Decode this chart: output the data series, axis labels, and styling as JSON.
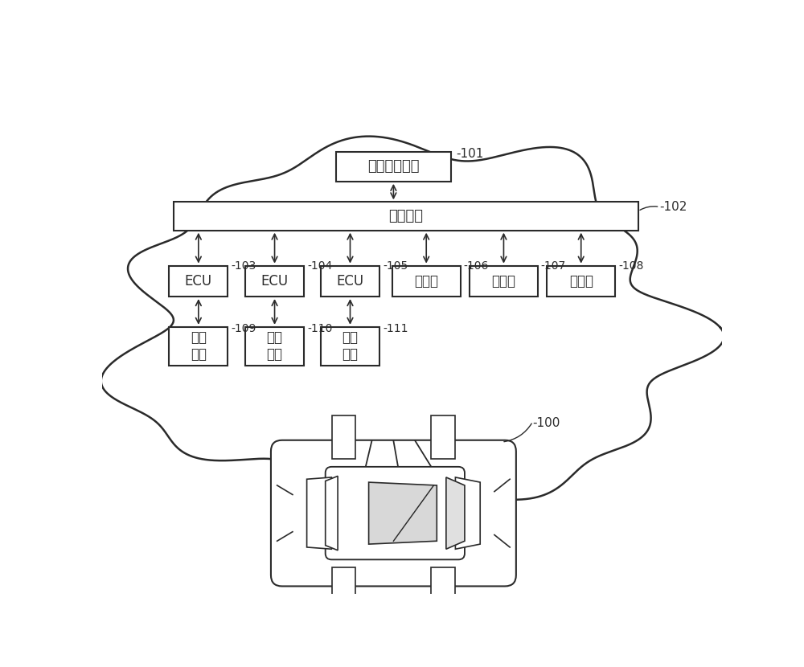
{
  "bg_color": "#ffffff",
  "line_color": "#2a2a2a",
  "label_101": "-101",
  "label_102": "-102",
  "label_103": "-103",
  "label_104": "-104",
  "label_105": "-105",
  "label_106": "-106",
  "label_107": "-107",
  "label_108": "-108",
  "label_109": "-109",
  "label_110": "-110",
  "label_111": "-111",
  "label_100": "-100",
  "text_drive": "驾驶控制设备",
  "text_bus": "车身总线",
  "text_ecu1": "ECU",
  "text_ecu2": "ECU",
  "text_ecu3": "ECU",
  "text_sensor1": "传感器",
  "text_sensor2": "传感器",
  "text_sensor3": "传感器",
  "text_exec1": "执行\n器件",
  "text_exec2": "执行\n器件",
  "text_exec3": "执行\n器件"
}
